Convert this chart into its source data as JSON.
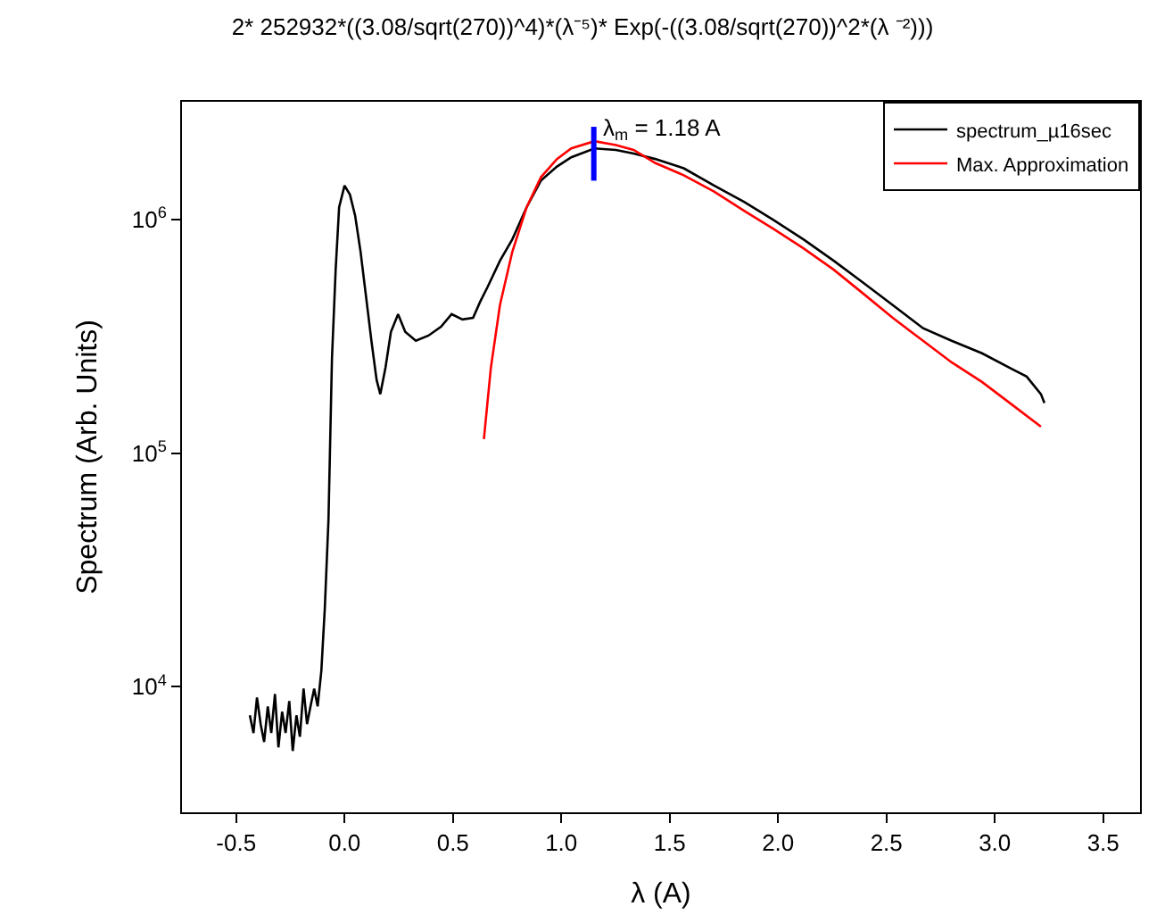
{
  "chart_data": {
    "type": "line",
    "title": "2* 252932*((3.08/sqrt(270))^4)*(λ⁻⁵)* Exp(-((3.08/sqrt(270))^2*(λ ⁻²)))",
    "xlabel": "λ (A)",
    "ylabel": "Spectrum (Arb. Units)",
    "log": "y",
    "legend": "top right",
    "marker": "none",
    "line_style": "solid",
    "xlim": [
      -0.75,
      3.67
    ],
    "xticks": [
      -0.5,
      {
        "value": 0,
        "label": "0.0"
      },
      0.5,
      {
        "value": 1,
        "label": "1.0"
      },
      1.5,
      {
        "value": 2,
        "label": "2.0"
      },
      2.5,
      {
        "value": 3,
        "label": "3.0"
      },
      3.5
    ],
    "ylim": [
      2900,
      3200000
    ],
    "yticks": [
      {
        "value": 10000,
        "label": "10$^{4}$"
      },
      {
        "value": 100000,
        "label": "10$^{5}$"
      },
      {
        "value": 1000000,
        "label": "10$^{6}$"
      }
    ],
    "annotations": [
      {
        "text": "λ$_{m}$ = 1.18 A",
        "x": 1.15,
        "y": 2500000
      }
    ],
    "series": [
      {
        "name": "spectrum_µ16sec",
        "color": "#000000",
        "x": [
          -0.437,
          -0.42,
          -0.404,
          -0.387,
          -0.371,
          -0.354,
          -0.338,
          -0.321,
          -0.305,
          -0.288,
          -0.272,
          -0.255,
          -0.239,
          -0.222,
          -0.206,
          -0.189,
          -0.173,
          -0.157,
          -0.14,
          -0.124,
          -0.107,
          -0.091,
          -0.074,
          -0.058,
          -0.041,
          -0.025,
          0.0,
          0.025,
          0.049,
          0.074,
          0.099,
          0.124,
          0.148,
          0.165,
          0.189,
          0.214,
          0.247,
          0.28,
          0.329,
          0.387,
          0.445,
          0.494,
          0.544,
          0.593,
          0.626,
          0.659,
          0.717,
          0.774,
          0.84,
          0.906,
          0.98,
          1.046,
          1.153,
          1.252,
          1.334,
          1.433,
          1.565,
          1.705,
          1.845,
          1.977,
          2.117,
          2.257,
          2.389,
          2.529,
          2.669,
          2.801,
          2.941,
          3.081,
          3.147,
          3.213,
          3.229
        ],
        "values": [
          7550,
          6340,
          9000,
          6920,
          5800,
          8240,
          6340,
          9310,
          5500,
          7820,
          6340,
          8690,
          5310,
          7550,
          6110,
          9820,
          6920,
          8240,
          9820,
          8240,
          11700,
          21700,
          52200,
          254000,
          611000,
          1130000,
          1400000,
          1280000,
          1040000,
          729000,
          470000,
          303000,
          206000,
          179000,
          233000,
          331000,
          394000,
          331000,
          303000,
          319000,
          348000,
          394000,
          374000,
          380000,
          446000,
          513000,
          667000,
          824000,
          1130000,
          1470000,
          1690000,
          1850000,
          2020000,
          1990000,
          1920000,
          1820000,
          1660000,
          1400000,
          1190000,
          1000000,
          824000,
          667000,
          541000,
          431000,
          343000,
          303000,
          268000,
          229000,
          213000,
          179000,
          164000
        ]
      },
      {
        "name": "Max. Approximation",
        "color": "#ff0000",
        "x": [
          0.643,
          0.675,
          0.717,
          0.774,
          0.84,
          0.906,
          0.98,
          1.046,
          1.153,
          1.252,
          1.334,
          1.433,
          1.565,
          1.705,
          1.845,
          1.977,
          2.117,
          2.257,
          2.389,
          2.529,
          2.669,
          2.801,
          2.941,
          3.081,
          3.213
        ],
        "values": [
          115000,
          232000,
          431000,
          729000,
          1130000,
          1520000,
          1820000,
          2020000,
          2170000,
          2090000,
          1990000,
          1750000,
          1550000,
          1320000,
          1090000,
          916000,
          755000,
          611000,
          486000,
          380000,
          303000,
          245000,
          202000,
          161000,
          130000
        ]
      },
      {
        "color": "#0000ff",
        "x": [
          1.15,
          1.15
        ],
        "values": [
          2500000,
          1470000
        ]
      }
    ]
  }
}
